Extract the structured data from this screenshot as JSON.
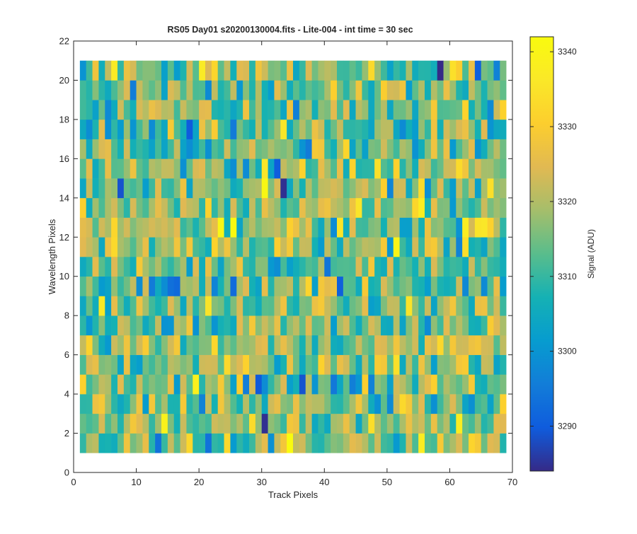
{
  "chart_data": {
    "type": "heatmap",
    "title": "RS05 Day01  s20200130004.fits - Lite-004 - int time = 30 sec",
    "xlabel": "Track Pixels",
    "ylabel": "Wavelength Pixels",
    "xlim": [
      0,
      70
    ],
    "ylim": [
      0,
      22
    ],
    "xticks": [
      0,
      10,
      20,
      30,
      40,
      50,
      60,
      70
    ],
    "yticks": [
      0,
      2,
      4,
      6,
      8,
      10,
      12,
      14,
      16,
      18,
      20,
      22
    ],
    "x_range": [
      1,
      69
    ],
    "y_range": [
      1,
      21
    ],
    "grid": false,
    "colormap": "parula",
    "colorbar": {
      "label": "Signal (ADU)",
      "clim": [
        3284,
        3342
      ],
      "ticks": [
        3290,
        3300,
        3310,
        3320,
        3330,
        3340
      ]
    },
    "value_range_estimated": [
      3284,
      3342
    ],
    "rows_count": 20,
    "cols_count": 68
  }
}
